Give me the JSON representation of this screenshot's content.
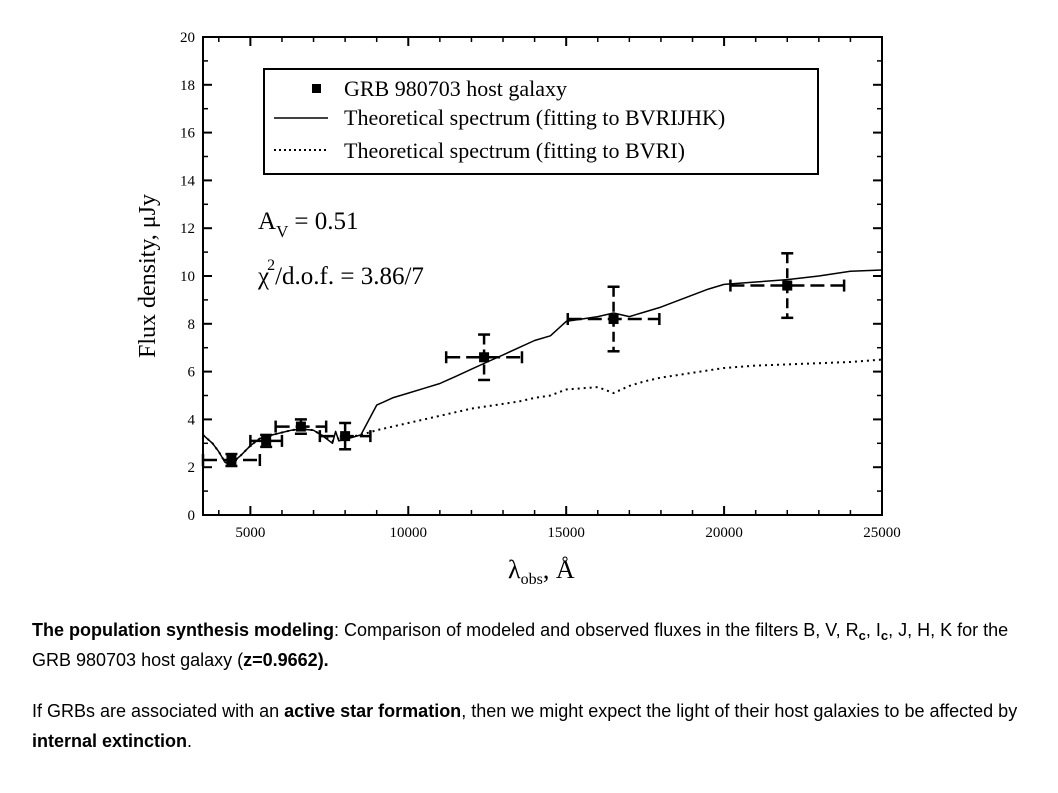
{
  "chart_data": {
    "type": "scatter",
    "xlabel_symbol": "λ",
    "xlabel_sub": "obs",
    "xlabel_unit": ", Å",
    "ylabel": "Flux density, μJy",
    "xlim": [
      3500,
      25000
    ],
    "ylim": [
      0,
      20
    ],
    "x_ticks": [
      5000,
      10000,
      15000,
      20000,
      25000
    ],
    "y_ticks": [
      0,
      2,
      4,
      6,
      8,
      10,
      12,
      14,
      16,
      18,
      20
    ],
    "grid": false,
    "legend_position": "top-right",
    "legend": [
      {
        "label": "GRB 980703 host galaxy",
        "style": "square-marker"
      },
      {
        "label": "Theoretical spectrum (fitting to BVRIJHK)",
        "style": "solid"
      },
      {
        "label": "Theoretical spectrum (fitting to BVRI)",
        "style": "dotted"
      }
    ],
    "annotations": {
      "av_label": "A",
      "av_sub": "V",
      "av_value": "= 0.51",
      "chi_label": "χ",
      "chi_sup": "2",
      "chi_value": "/d.o.f. = 3.86/7"
    },
    "series": [
      {
        "name": "GRB 980703 host galaxy",
        "type": "errorbar",
        "points": [
          {
            "x": 4400,
            "y": 2.3,
            "xerr": 900,
            "yerr": 0.25
          },
          {
            "x": 5500,
            "y": 3.1,
            "xerr": 500,
            "yerr": 0.25
          },
          {
            "x": 6600,
            "y": 3.7,
            "xerr": 800,
            "yerr": 0.3
          },
          {
            "x": 8000,
            "y": 3.3,
            "xerr": 800,
            "yerr": 0.55
          },
          {
            "x": 12400,
            "y": 6.6,
            "xerr": 1200,
            "yerr": 0.95
          },
          {
            "x": 16500,
            "y": 8.2,
            "xerr": 1450,
            "yerr": 1.35
          },
          {
            "x": 22000,
            "y": 9.6,
            "xerr": 1800,
            "yerr": 1.35
          }
        ]
      },
      {
        "name": "Theoretical spectrum (fitting to BVRIJHK)",
        "type": "line",
        "x": [
          3500,
          3800,
          4000,
          4200,
          4400,
          4700,
          5000,
          5300,
          5700,
          6000,
          6300,
          6600,
          7000,
          7300,
          7600,
          7700,
          7800,
          8100,
          8500,
          9000,
          9500,
          10000,
          10500,
          11000,
          11500,
          12000,
          12500,
          13000,
          13500,
          14000,
          14500,
          15000,
          15500,
          16000,
          16500,
          17000,
          17500,
          18000,
          18500,
          19000,
          19500,
          20000,
          21000,
          22000,
          23000,
          24000,
          25000
        ],
        "y": [
          3.35,
          3.0,
          2.65,
          2.2,
          2.15,
          2.5,
          2.9,
          3.2,
          3.35,
          3.45,
          3.55,
          3.6,
          3.55,
          3.3,
          3.0,
          3.5,
          3.1,
          3.2,
          3.35,
          4.6,
          4.9,
          5.1,
          5.3,
          5.5,
          5.8,
          6.1,
          6.4,
          6.7,
          7.0,
          7.3,
          7.5,
          8.1,
          8.2,
          8.3,
          8.45,
          8.3,
          8.5,
          8.7,
          8.95,
          9.2,
          9.45,
          9.65,
          9.75,
          9.85,
          10.0,
          10.2,
          10.25
        ]
      },
      {
        "name": "Theoretical spectrum (fitting to BVRI)",
        "type": "line",
        "x": [
          3500,
          3800,
          4000,
          4200,
          4400,
          4700,
          5000,
          5300,
          5700,
          6000,
          6300,
          6600,
          7000,
          7300,
          7600,
          7800,
          8100,
          8500,
          9000,
          9500,
          10000,
          10500,
          11000,
          11500,
          12000,
          12500,
          13000,
          13500,
          14000,
          14500,
          15000,
          15500,
          16000,
          16500,
          17000,
          17500,
          18000,
          18500,
          19000,
          19500,
          20000,
          21000,
          22000,
          23000,
          24000,
          25000
        ],
        "y": [
          3.35,
          3.0,
          2.65,
          2.2,
          2.15,
          2.5,
          2.9,
          3.2,
          3.35,
          3.45,
          3.55,
          3.6,
          3.55,
          3.3,
          3.1,
          3.2,
          3.25,
          3.35,
          3.55,
          3.7,
          3.85,
          4.0,
          4.15,
          4.3,
          4.45,
          4.55,
          4.65,
          4.75,
          4.9,
          5.0,
          5.25,
          5.3,
          5.35,
          5.1,
          5.4,
          5.6,
          5.75,
          5.85,
          5.95,
          6.05,
          6.15,
          6.25,
          6.3,
          6.35,
          6.4,
          6.5
        ]
      }
    ]
  },
  "caption": {
    "p1_bold": "The population synthesis modeling",
    "p1_colon": ":",
    "p1_text": " Comparison of modeled and observed fluxes in the filters B, V, R",
    "p1_rsub": "c",
    "p1_sep": ", I",
    "p1_isub": "c",
    "p1_text2": ", J, H, K for the GRB 980703 host galaxy (",
    "p1_z": "z=0.9662).",
    "p2_text1": "If GRBs are associated with an ",
    "p2_bold1": "active star formation",
    "p2_text2": ", then we might expect the light of their host galaxies to be affected by ",
    "p2_bold2": "internal extinction",
    "p2_text3": "."
  }
}
